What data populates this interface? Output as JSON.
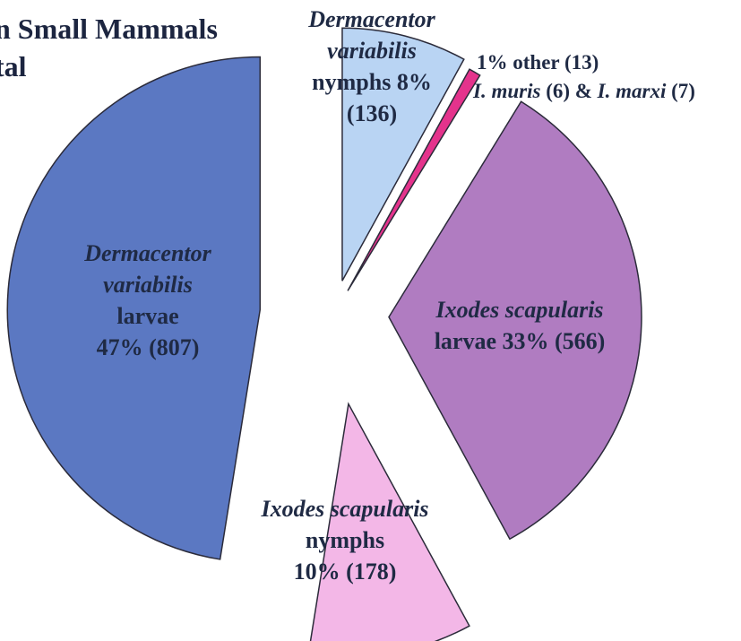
{
  "chart_data": {
    "type": "pie",
    "title_lines": [
      "n Small Mammals",
      "tal"
    ],
    "categories": [
      "Dermacentor variabilis nymphs",
      "other",
      "Ixodes scapularis larvae",
      "Ixodes scapularis nymphs",
      "Dermacentor variabilis larvae"
    ],
    "values": [
      136,
      13,
      566,
      178,
      807
    ],
    "colors": [
      "#b9d4f3",
      "#e4338c",
      "#b07cc1",
      "#f3b7e7",
      "#5b78c2"
    ],
    "labels": [
      [
        {
          "text": "Dermacentor variabilis",
          "style": "italic"
        },
        {
          "text": "nymphs 8% (136)"
        }
      ],
      [
        {
          "text": "1% other (13)"
        },
        {
          "text": "I. muris",
          "style": "italic"
        },
        {
          "text": "(6) &"
        },
        {
          "text": "I. marxi",
          "style": "italic"
        },
        {
          "text": "(7)"
        }
      ],
      [
        {
          "text": "Ixodes scapularis",
          "style": "italic"
        },
        {
          "text": "larvae 33% (566)"
        }
      ],
      [
        {
          "text": "Ixodes scapularis",
          "style": "italic"
        },
        {
          "text": "nymphs"
        },
        {
          "text": "10% (178)"
        }
      ],
      [
        {
          "text": "Dermacentor variabilis",
          "style": "italic"
        },
        {
          "text": "larvae"
        },
        {
          "text": "47% (807)"
        }
      ]
    ]
  }
}
